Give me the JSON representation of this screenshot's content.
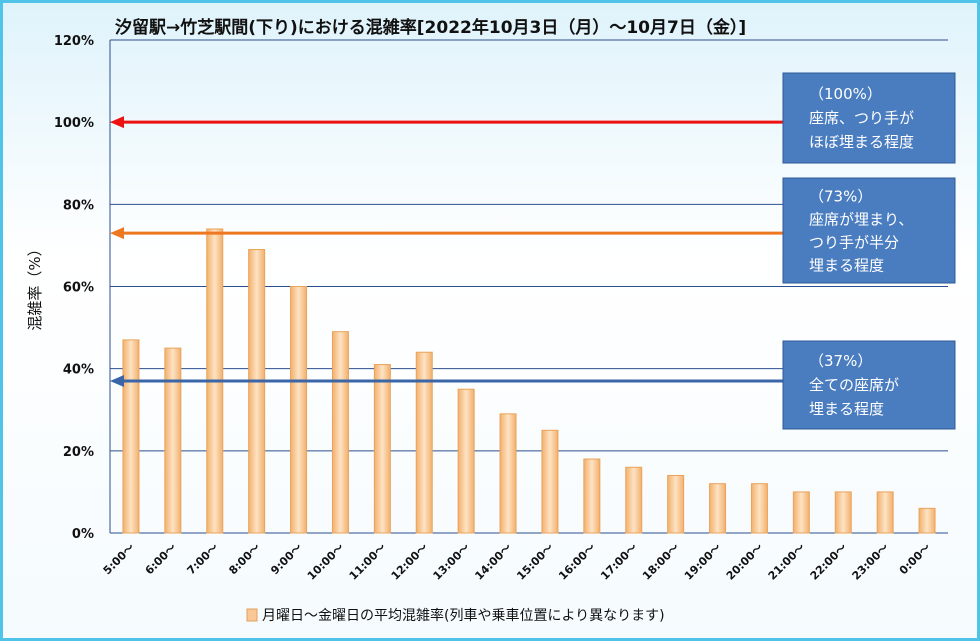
{
  "chart_data": {
    "type": "bar",
    "title": "汐留駅→竹芝駅間(下り)における混雑率[2022年10月3日（月）～10月7日（金）]",
    "xlabel": "",
    "ylabel": "混雑率（%）",
    "ylim": [
      0,
      120
    ],
    "yticks": [
      "0%",
      "20%",
      "40%",
      "60%",
      "80%",
      "100%",
      "120%"
    ],
    "grid": true,
    "legend_position": "bottom",
    "categories": [
      "5:00～",
      "6:00～",
      "7:00～",
      "8:00～",
      "9:00～",
      "10:00～",
      "11:00～",
      "12:00～",
      "13:00～",
      "14:00～",
      "15:00～",
      "16:00～",
      "17:00～",
      "18:00～",
      "19:00～",
      "20:00～",
      "21:00～",
      "22:00～",
      "23:00～",
      "0:00～"
    ],
    "series": [
      {
        "name": "月曜日～金曜日の平均混雑率(列車や乗車位置により異なります)",
        "values": [
          47,
          45,
          74,
          69,
          60,
          49,
          41,
          44,
          35,
          29,
          25,
          18,
          16,
          14,
          12,
          12,
          10,
          10,
          10,
          6
        ]
      }
    ],
    "bar_color": "#f9c894",
    "reference_lines": [
      {
        "value": 100,
        "color": "#ee1111",
        "lines": [
          "（100%）",
          "座席、つり手が",
          "ほぼ埋まる程度"
        ]
      },
      {
        "value": 73,
        "color": "#ee7722",
        "lines": [
          "（73%）",
          "座席が埋まり、",
          "つり手が半分",
          "埋まる程度"
        ]
      },
      {
        "value": 37,
        "color": "#3a66a8",
        "lines": [
          "（37%）",
          "全ての座席が",
          "埋まる程度"
        ]
      }
    ]
  }
}
